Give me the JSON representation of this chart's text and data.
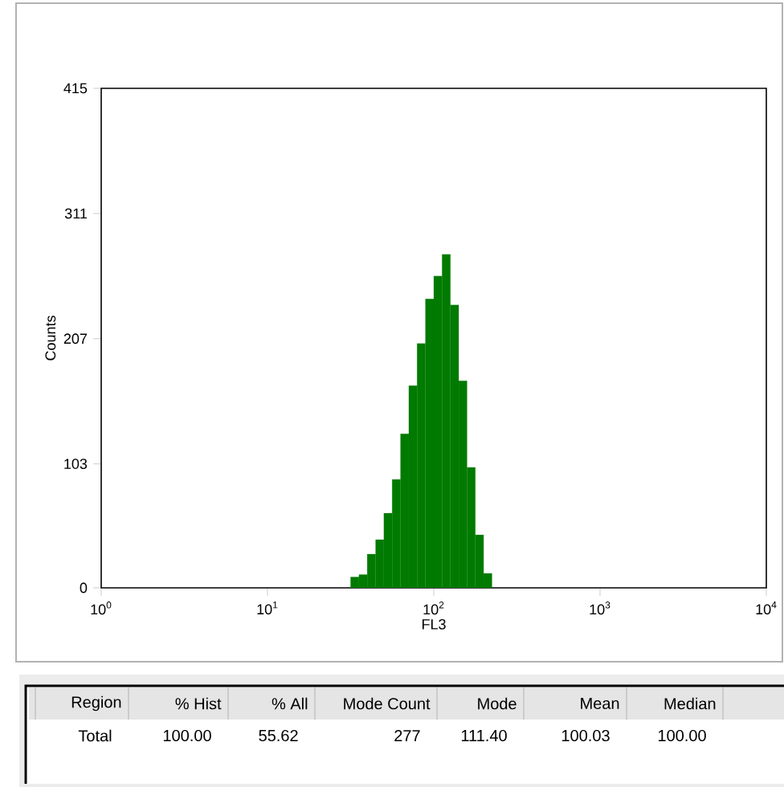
{
  "chart_data": {
    "type": "histogram",
    "xlabel": "FL3",
    "ylabel": "Counts",
    "log": "x",
    "xlim": [
      1,
      10000
    ],
    "xticks": [
      {
        "value": 1,
        "label": "10$^{0}$"
      },
      {
        "value": 10,
        "label": "10$^{1}$"
      },
      {
        "value": 100,
        "label": "10$^{2}$"
      },
      {
        "value": 1000,
        "label": "10$^{3}$"
      },
      {
        "value": 10000,
        "label": "10$^{4}$"
      }
    ],
    "ylim": [
      0,
      415
    ],
    "yticks": [
      0,
      103,
      207,
      311,
      415
    ],
    "color": "#007a00",
    "bins": [
      31.6,
      35.5,
      39.8,
      44.7,
      50.1,
      56.2,
      63.1,
      70.8,
      79.4,
      89.1,
      100,
      112.2,
      125.9,
      141.3,
      158.5,
      177.8,
      199.5,
      223.9
    ],
    "values": [
      9,
      11,
      28,
      40,
      62,
      90,
      128,
      168,
      203,
      240,
      259,
      277,
      235,
      172,
      100,
      44,
      12
    ],
    "grid": false,
    "annotations": [
      "Region",
      "% Hist",
      "% All",
      "Mode Count",
      "Mode",
      "Mean",
      "Median",
      "Total",
      "100.00",
      "55.62",
      "277",
      "111.40",
      "100.03",
      "100.00"
    ]
  }
}
